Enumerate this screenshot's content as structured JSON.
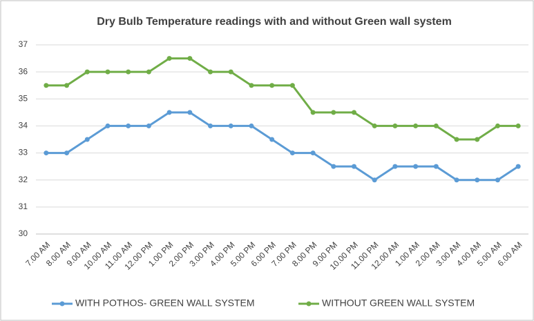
{
  "chart_data": {
    "type": "line",
    "title": "Dry Bulb Temperature  readings with and without Green wall system",
    "categories": [
      "7.00 AM",
      "8.00 AM",
      "9.00 AM",
      "10.00 AM",
      "11.00 AM",
      "12.00 PM",
      "1.00 PM",
      "2.00 PM",
      "3.00 PM",
      "4.00 PM",
      "5.00 PM",
      "6.00 PM",
      "7.00 PM",
      "8.00 PM",
      "9.00 PM",
      "10.00 PM",
      "11.00 PM",
      "12.00 AM",
      "1.00 AM",
      "2.00 AM",
      "3.00 AM",
      "4.00 AM",
      "5.00 AM",
      "6.00 AM"
    ],
    "series": [
      {
        "name": "WITH POTHOS- GREEN WALL SYSTEM",
        "color": "#5b9bd5",
        "values": [
          33,
          33,
          33.5,
          34,
          34,
          34,
          34.5,
          34.5,
          34,
          34,
          34,
          33.5,
          33,
          33,
          32.5,
          32.5,
          32,
          32.5,
          32.5,
          32.5,
          32,
          32,
          32,
          32.5
        ]
      },
      {
        "name": "WITHOUT GREEN WALL SYSTEM",
        "color": "#70ad47",
        "values": [
          35.5,
          35.5,
          36,
          36,
          36,
          36,
          36.5,
          36.5,
          36,
          36,
          35.5,
          35.5,
          35.5,
          34.5,
          34.5,
          34.5,
          34,
          34,
          34,
          34,
          33.5,
          33.5,
          34,
          34
        ]
      }
    ],
    "ylim": [
      30,
      37
    ],
    "yticks": [
      30,
      31,
      32,
      33,
      34,
      35,
      36,
      37
    ],
    "grid": true,
    "legend": "bottom"
  }
}
